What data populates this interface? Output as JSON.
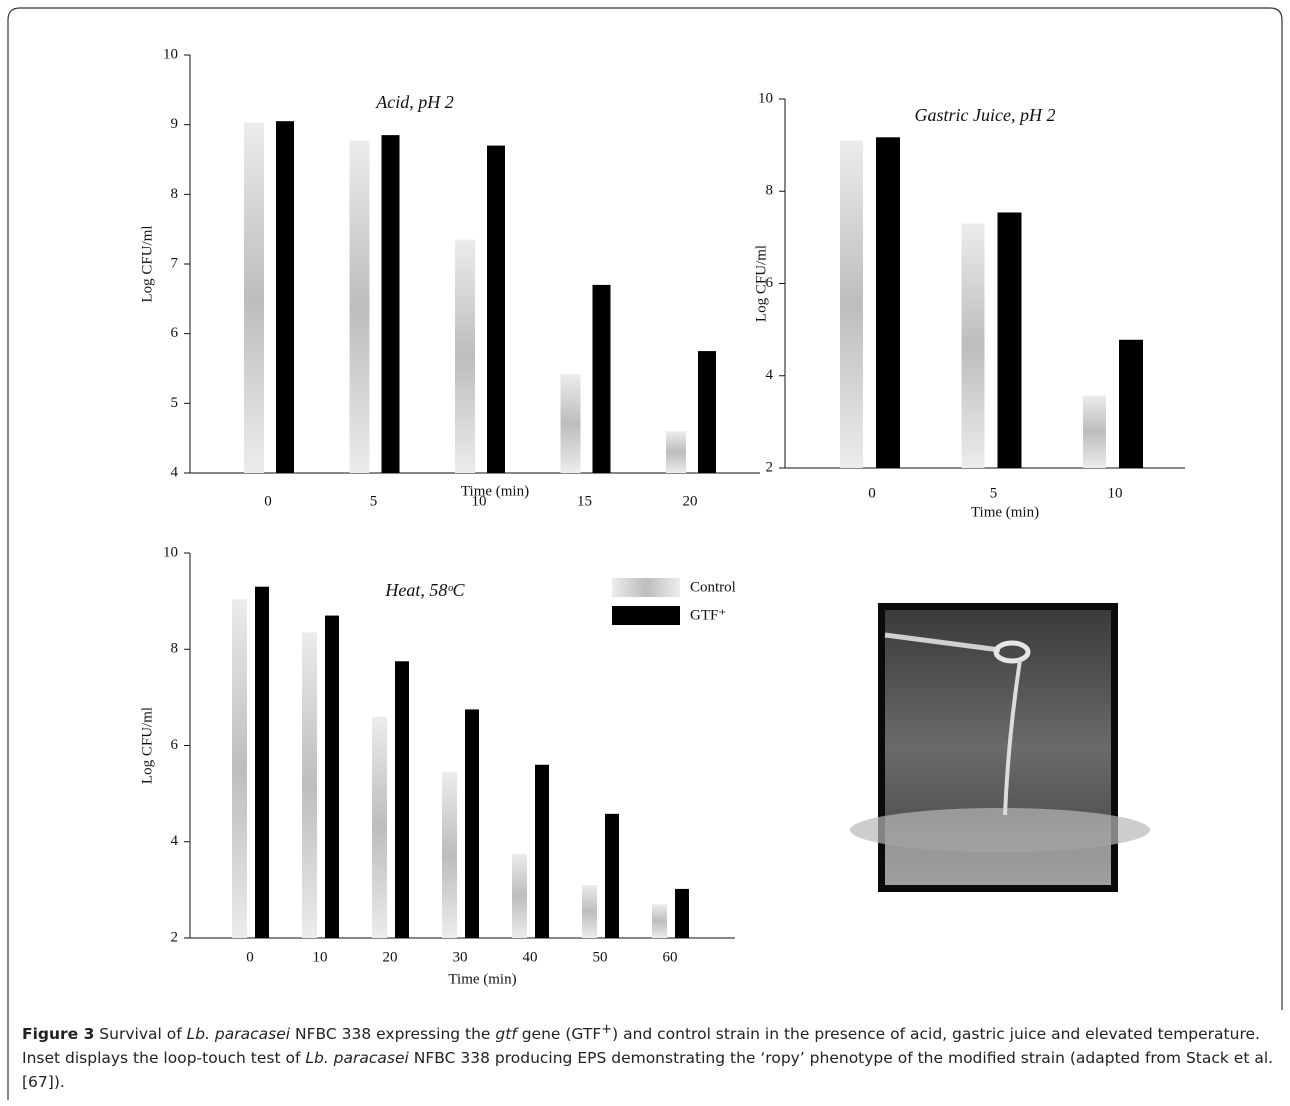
{
  "chart_data": [
    {
      "type": "bar",
      "title": "Acid, pH 2",
      "x_label": "Time (min)",
      "y_label": "Log CFU/ml",
      "categories": [
        "0",
        "5",
        "10",
        "15",
        "20"
      ],
      "series": [
        {
          "color": "#bdbdbd",
          "values": [
            9.03,
            8.77,
            7.35,
            5.42,
            4.6
          ]
        },
        {
          "color": "#000000",
          "values": [
            9.05,
            8.85,
            8.7,
            6.7,
            5.75
          ]
        }
      ],
      "ylim": [
        4,
        10
      ],
      "yticks": [
        4,
        5,
        6,
        7,
        8,
        9,
        10
      ]
    },
    {
      "type": "bar",
      "title": "Gastric Juice, pH 2",
      "x_label": "Time (min)",
      "y_label": "Log CFU/ml",
      "categories": [
        "0",
        "5",
        "10"
      ],
      "series": [
        {
          "color": "#bdbdbd",
          "values": [
            9.1,
            7.3,
            3.57
          ]
        },
        {
          "color": "#000000",
          "values": [
            9.17,
            7.54,
            4.78
          ]
        }
      ],
      "ylim": [
        2,
        10
      ],
      "yticks": [
        2,
        4,
        6,
        8,
        10
      ]
    },
    {
      "type": "bar",
      "title": "Heat, 58ᵒC",
      "x_label": "Time (min)",
      "y_label": "Log CFU/ml",
      "categories": [
        "0",
        "10",
        "20",
        "30",
        "40",
        "50",
        "60"
      ],
      "series": [
        {
          "name": "Control",
          "color": "#bdbdbd",
          "values": [
            9.04,
            8.35,
            6.6,
            5.45,
            3.75,
            3.1,
            2.7
          ]
        },
        {
          "name": "GTF⁺",
          "color": "#000000",
          "values": [
            9.3,
            8.7,
            7.75,
            6.75,
            5.6,
            4.58,
            3.02
          ]
        }
      ],
      "ylim": [
        2,
        10
      ],
      "yticks": [
        2,
        4,
        6,
        8,
        10
      ],
      "legend": "top-right"
    }
  ],
  "caption": [
    "Figure 3",
    " Survival of ",
    "Lb. paracasei",
    " NFBC 338 expressing the ",
    "gtf",
    " gene (GTF",
    "+",
    ") and control strain in the presence of acid, gastric juice and elevated temperature. Inset displays the loop-touch test of ",
    "Lb. paracasei",
    " NFBC 338 producing EPS demonstrating the ‘ropy’ phenotype of the modified strain (adapted from Stack et al. [67])."
  ]
}
